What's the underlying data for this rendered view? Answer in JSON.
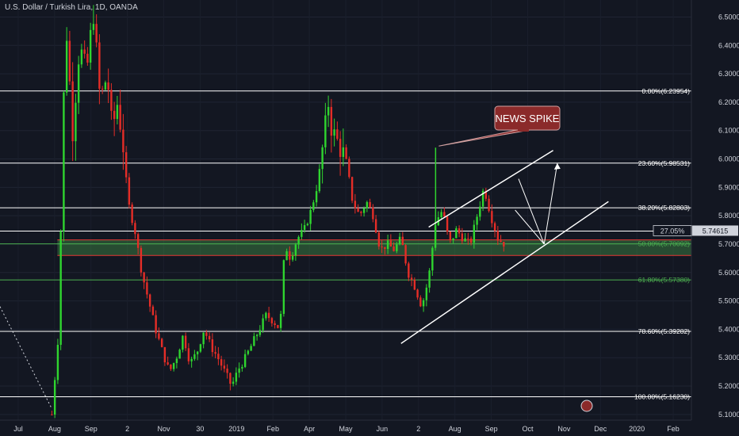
{
  "legend": {
    "title": "U.S. Dollar / Turkish Lira, 1D, OANDA"
  },
  "chart_data": {
    "type": "candlestick",
    "title": "U.S. Dollar / Turkish Lira, 1D, OANDA",
    "ylim": [
      5.08,
      6.56
    ],
    "y_ticks": [
      "6.50000",
      "6.40000",
      "6.30000",
      "6.20000",
      "6.10000",
      "6.00000",
      "5.90000",
      "5.80000",
      "5.70000",
      "5.60000",
      "5.50000",
      "5.40000",
      "5.30000",
      "5.20000",
      "5.10000"
    ],
    "x_ticks": [
      "Jul",
      "Aug",
      "Sep",
      "2",
      "Nov",
      "30",
      "2019",
      "Feb",
      "Apr",
      "May",
      "Jun",
      "2",
      "Aug",
      "Sep",
      "Oct",
      "Nov",
      "Dec",
      "2020",
      "Feb"
    ],
    "current_price": {
      "value": "5.74615",
      "label": "27.05%"
    },
    "fibonacci_levels": [
      {
        "label": "0.00%(6.23954)",
        "value": 6.23954,
        "color": "#ffffff"
      },
      {
        "label": "23.60%(5.98531)",
        "value": 5.98531,
        "color": "#ffffff"
      },
      {
        "label": "38.20%(5.82803)",
        "value": 5.82803,
        "color": "#ffffff"
      },
      {
        "label": "50.00%(5.70092)",
        "value": 5.70092,
        "color": "#4caf50"
      },
      {
        "label": "61.80%(5.57380)",
        "value": 5.5738,
        "color": "#4caf50"
      },
      {
        "label": "78.60%(5.39282)",
        "value": 5.39282,
        "color": "#ffffff"
      },
      {
        "label": "100.00%(5.16230)",
        "value": 5.1623,
        "color": "#ffffff"
      }
    ],
    "support_zone": {
      "top": 5.715,
      "bottom": 5.66
    },
    "annotation": {
      "text": "NEWS SPIKE"
    },
    "candle_path": [
      [
        0.0,
        5.45
      ],
      [
        0.068,
        5.2
      ],
      [
        0.075,
        5.1
      ],
      [
        0.085,
        5.4
      ],
      [
        0.09,
        6.0
      ],
      [
        0.095,
        6.5
      ],
      [
        0.105,
        6.1
      ],
      [
        0.115,
        6.4
      ],
      [
        0.125,
        6.3
      ],
      [
        0.135,
        6.52
      ],
      [
        0.145,
        6.2
      ],
      [
        0.155,
        6.3
      ],
      [
        0.162,
        6.1
      ],
      [
        0.17,
        6.2
      ],
      [
        0.178,
        6.05
      ],
      [
        0.185,
        5.85
      ],
      [
        0.195,
        5.75
      ],
      [
        0.205,
        5.6
      ],
      [
        0.215,
        5.5
      ],
      [
        0.225,
        5.4
      ],
      [
        0.235,
        5.32
      ],
      [
        0.245,
        5.25
      ],
      [
        0.255,
        5.3
      ],
      [
        0.265,
        5.38
      ],
      [
        0.275,
        5.28
      ],
      [
        0.285,
        5.32
      ],
      [
        0.295,
        5.4
      ],
      [
        0.305,
        5.34
      ],
      [
        0.315,
        5.3
      ],
      [
        0.325,
        5.25
      ],
      [
        0.335,
        5.2
      ],
      [
        0.345,
        5.26
      ],
      [
        0.355,
        5.3
      ],
      [
        0.365,
        5.35
      ],
      [
        0.375,
        5.4
      ],
      [
        0.385,
        5.45
      ],
      [
        0.395,
        5.43
      ],
      [
        0.405,
        5.4
      ],
      [
        0.412,
        5.7
      ],
      [
        0.42,
        5.65
      ],
      [
        0.43,
        5.72
      ],
      [
        0.44,
        5.75
      ],
      [
        0.45,
        5.82
      ],
      [
        0.46,
        5.92
      ],
      [
        0.47,
        6.1
      ],
      [
        0.475,
        6.2
      ],
      [
        0.48,
        6.1
      ],
      [
        0.49,
        6.05
      ],
      [
        0.5,
        6.0
      ],
      [
        0.51,
        5.85
      ],
      [
        0.52,
        5.8
      ],
      [
        0.53,
        5.85
      ],
      [
        0.54,
        5.8
      ],
      [
        0.55,
        5.68
      ],
      [
        0.56,
        5.7
      ],
      [
        0.57,
        5.68
      ],
      [
        0.58,
        5.72
      ],
      [
        0.59,
        5.6
      ],
      [
        0.6,
        5.55
      ],
      [
        0.61,
        5.48
      ],
      [
        0.62,
        5.58
      ],
      [
        0.63,
        5.78
      ],
      [
        0.64,
        5.82
      ],
      [
        0.65,
        5.7
      ],
      [
        0.66,
        5.75
      ],
      [
        0.67,
        5.72
      ],
      [
        0.68,
        5.7
      ],
      [
        0.69,
        5.8
      ],
      [
        0.7,
        5.9
      ],
      [
        0.71,
        5.8
      ],
      [
        0.72,
        5.72
      ],
      [
        0.73,
        5.7
      ]
    ],
    "spike_index": 0.63,
    "spike_value": 6.04
  }
}
